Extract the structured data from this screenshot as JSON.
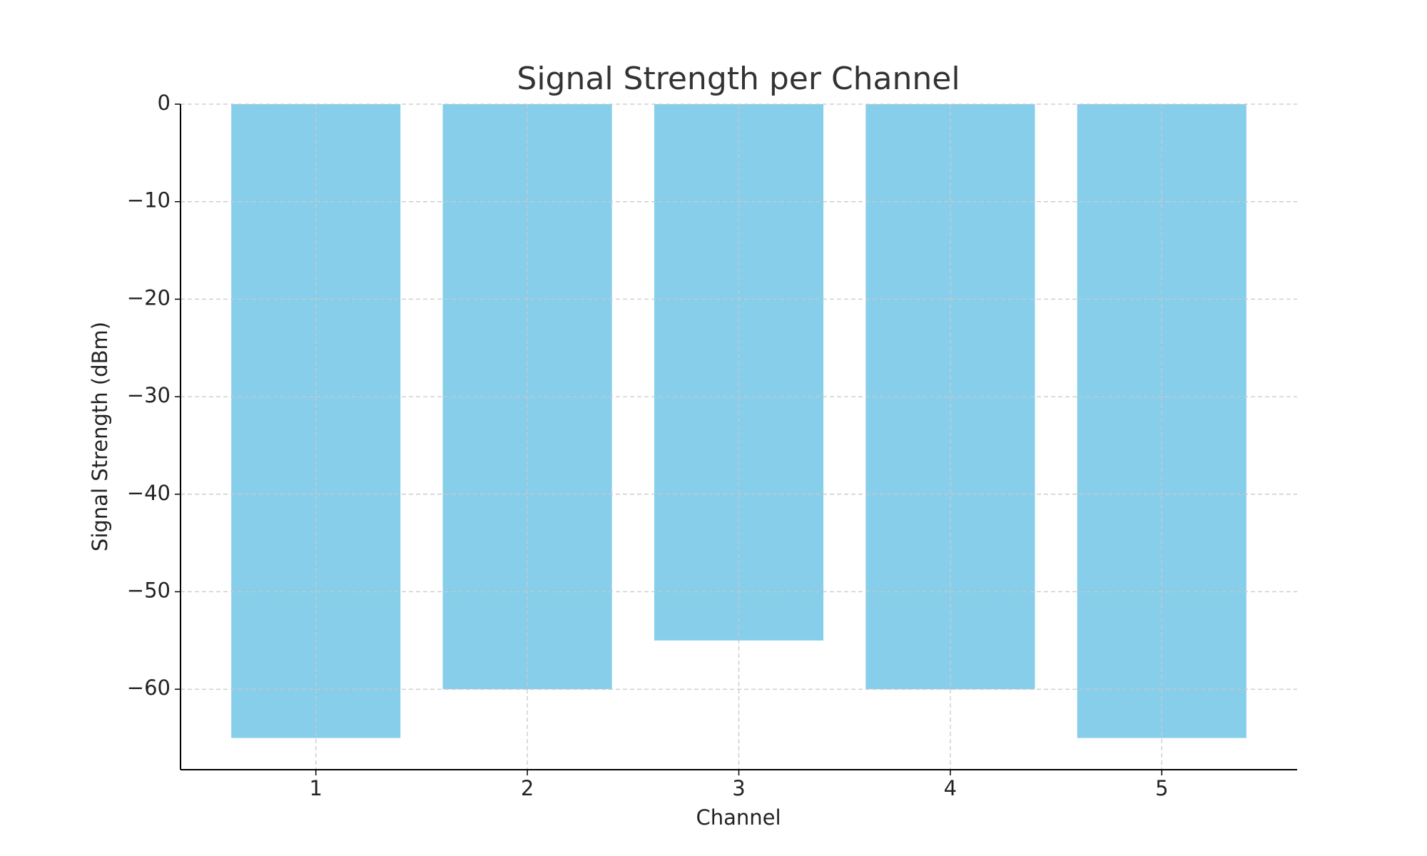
{
  "chart_data": {
    "type": "bar",
    "title": "Signal Strength per Channel",
    "x_label": "Channel",
    "y_label": "Signal Strength (dBm)",
    "x": [
      1,
      2,
      3,
      4,
      5
    ],
    "values": [
      -65,
      -60,
      -55,
      -60,
      -65
    ],
    "color": "#87ceeb",
    "xlim": [
      0.36,
      5.64
    ],
    "xticks": [
      1,
      2,
      3,
      4,
      5
    ],
    "ylim": [
      -68.25,
      0
    ],
    "yticks": [
      0,
      {
        "value": -10,
        "label": "−10"
      },
      {
        "value": -20,
        "label": "−20"
      },
      {
        "value": -30,
        "label": "−30"
      },
      {
        "value": -40,
        "label": "−40"
      },
      {
        "value": -50,
        "label": "−50"
      },
      {
        "value": -60,
        "label": "−60"
      }
    ],
    "grid": true
  }
}
